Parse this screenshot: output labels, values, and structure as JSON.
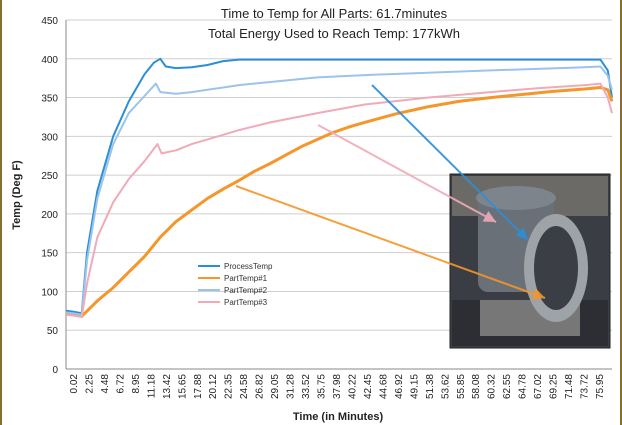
{
  "chart_data": {
    "type": "line",
    "title": "Time to Temp for All Parts: 61.7minutes",
    "subtitle": "Total Energy Used to Reach Temp: 177kWh",
    "xlabel": "Time (in Minutes)",
    "ylabel": "Temp (Deg F)",
    "ylim": [
      0,
      450
    ],
    "yticks": [
      0,
      50,
      100,
      150,
      200,
      250,
      300,
      350,
      400,
      450
    ],
    "x_tick_labels": [
      "0.02",
      "2.25",
      "4.48",
      "6.72",
      "8.95",
      "11.18",
      "13.42",
      "15.65",
      "17.88",
      "20.12",
      "22.35",
      "24.58",
      "26.82",
      "29.05",
      "31.28",
      "33.52",
      "35.75",
      "37.98",
      "40.22",
      "42.45",
      "44.68",
      "46.92",
      "49.15",
      "51.38",
      "53.62",
      "55.85",
      "58.08",
      "60.32",
      "62.55",
      "64.78",
      "67.02",
      "69.25",
      "71.48",
      "73.72",
      "75.95"
    ],
    "xlim": [
      0.02,
      77.6
    ],
    "grid": true,
    "legend_position": "center-left",
    "series": [
      {
        "name": "ProcessTemp",
        "color": "#2b8fd6",
        "points": [
          [
            0.02,
            75
          ],
          [
            1.0,
            74
          ],
          [
            2.25,
            72
          ],
          [
            3.0,
            150
          ],
          [
            4.48,
            230
          ],
          [
            6.72,
            300
          ],
          [
            8.95,
            345
          ],
          [
            11.18,
            380
          ],
          [
            12.5,
            395
          ],
          [
            13.42,
            400
          ],
          [
            14.2,
            390
          ],
          [
            15.65,
            388
          ],
          [
            17.88,
            389
          ],
          [
            20.12,
            392
          ],
          [
            22.35,
            397
          ],
          [
            24.58,
            399
          ],
          [
            29.05,
            399
          ],
          [
            35.75,
            399
          ],
          [
            42.45,
            399
          ],
          [
            51.38,
            399
          ],
          [
            60.32,
            399
          ],
          [
            67.02,
            399
          ],
          [
            73.72,
            399
          ],
          [
            75.95,
            399
          ],
          [
            77.0,
            385
          ],
          [
            77.6,
            350
          ]
        ]
      },
      {
        "name": "PartTemp#1",
        "color": "#f5962a",
        "points": [
          [
            0.02,
            72
          ],
          [
            1.0,
            70
          ],
          [
            2.25,
            68
          ],
          [
            4.48,
            88
          ],
          [
            6.72,
            105
          ],
          [
            8.95,
            125
          ],
          [
            11.18,
            145
          ],
          [
            13.42,
            170
          ],
          [
            15.65,
            190
          ],
          [
            17.88,
            205
          ],
          [
            20.12,
            220
          ],
          [
            22.35,
            232
          ],
          [
            24.58,
            243
          ],
          [
            26.82,
            255
          ],
          [
            29.05,
            265
          ],
          [
            31.28,
            276
          ],
          [
            33.52,
            287
          ],
          [
            35.75,
            296
          ],
          [
            37.98,
            305
          ],
          [
            40.22,
            312
          ],
          [
            42.45,
            318
          ],
          [
            46.92,
            329
          ],
          [
            51.38,
            338
          ],
          [
            55.85,
            345
          ],
          [
            60.32,
            350
          ],
          [
            64.78,
            354
          ],
          [
            69.25,
            358
          ],
          [
            73.72,
            361
          ],
          [
            75.95,
            363
          ],
          [
            77.0,
            360
          ],
          [
            77.6,
            345
          ]
        ]
      },
      {
        "name": "PartTemp#2",
        "color": "#9cc3ea",
        "points": [
          [
            0.02,
            73
          ],
          [
            1.0,
            72
          ],
          [
            2.25,
            70
          ],
          [
            3.0,
            140
          ],
          [
            4.48,
            220
          ],
          [
            6.72,
            290
          ],
          [
            8.95,
            330
          ],
          [
            11.18,
            352
          ],
          [
            12.8,
            368
          ],
          [
            13.42,
            357
          ],
          [
            15.65,
            355
          ],
          [
            17.88,
            357
          ],
          [
            20.12,
            360
          ],
          [
            22.35,
            363
          ],
          [
            24.58,
            366
          ],
          [
            29.05,
            370
          ],
          [
            35.75,
            376
          ],
          [
            42.45,
            379
          ],
          [
            51.38,
            382
          ],
          [
            60.32,
            385
          ],
          [
            67.02,
            387
          ],
          [
            73.72,
            389
          ],
          [
            75.95,
            390
          ],
          [
            77.0,
            378
          ],
          [
            77.6,
            360
          ]
        ]
      },
      {
        "name": "PartTemp#3",
        "color": "#f0aab8",
        "points": [
          [
            0.02,
            70
          ],
          [
            1.0,
            69
          ],
          [
            2.25,
            67
          ],
          [
            3.0,
            110
          ],
          [
            4.48,
            170
          ],
          [
            6.72,
            215
          ],
          [
            8.95,
            245
          ],
          [
            11.18,
            268
          ],
          [
            13.0,
            290
          ],
          [
            13.6,
            278
          ],
          [
            15.65,
            282
          ],
          [
            17.88,
            290
          ],
          [
            20.12,
            296
          ],
          [
            22.35,
            302
          ],
          [
            24.58,
            308
          ],
          [
            29.05,
            318
          ],
          [
            35.75,
            330
          ],
          [
            42.45,
            341
          ],
          [
            51.38,
            350
          ],
          [
            60.32,
            357
          ],
          [
            67.02,
            362
          ],
          [
            73.72,
            366
          ],
          [
            75.95,
            368
          ],
          [
            77.0,
            350
          ],
          [
            77.6,
            330
          ]
        ]
      }
    ]
  },
  "annotations": {
    "photo_icon": "part-photo-icon",
    "arrow_colors": [
      "#2b8fd6",
      "#f5962a",
      "#f0aab8"
    ]
  },
  "colors": {
    "grid": "#cfcfcf",
    "axis": "#888888",
    "frame": "#8a6d2c"
  }
}
